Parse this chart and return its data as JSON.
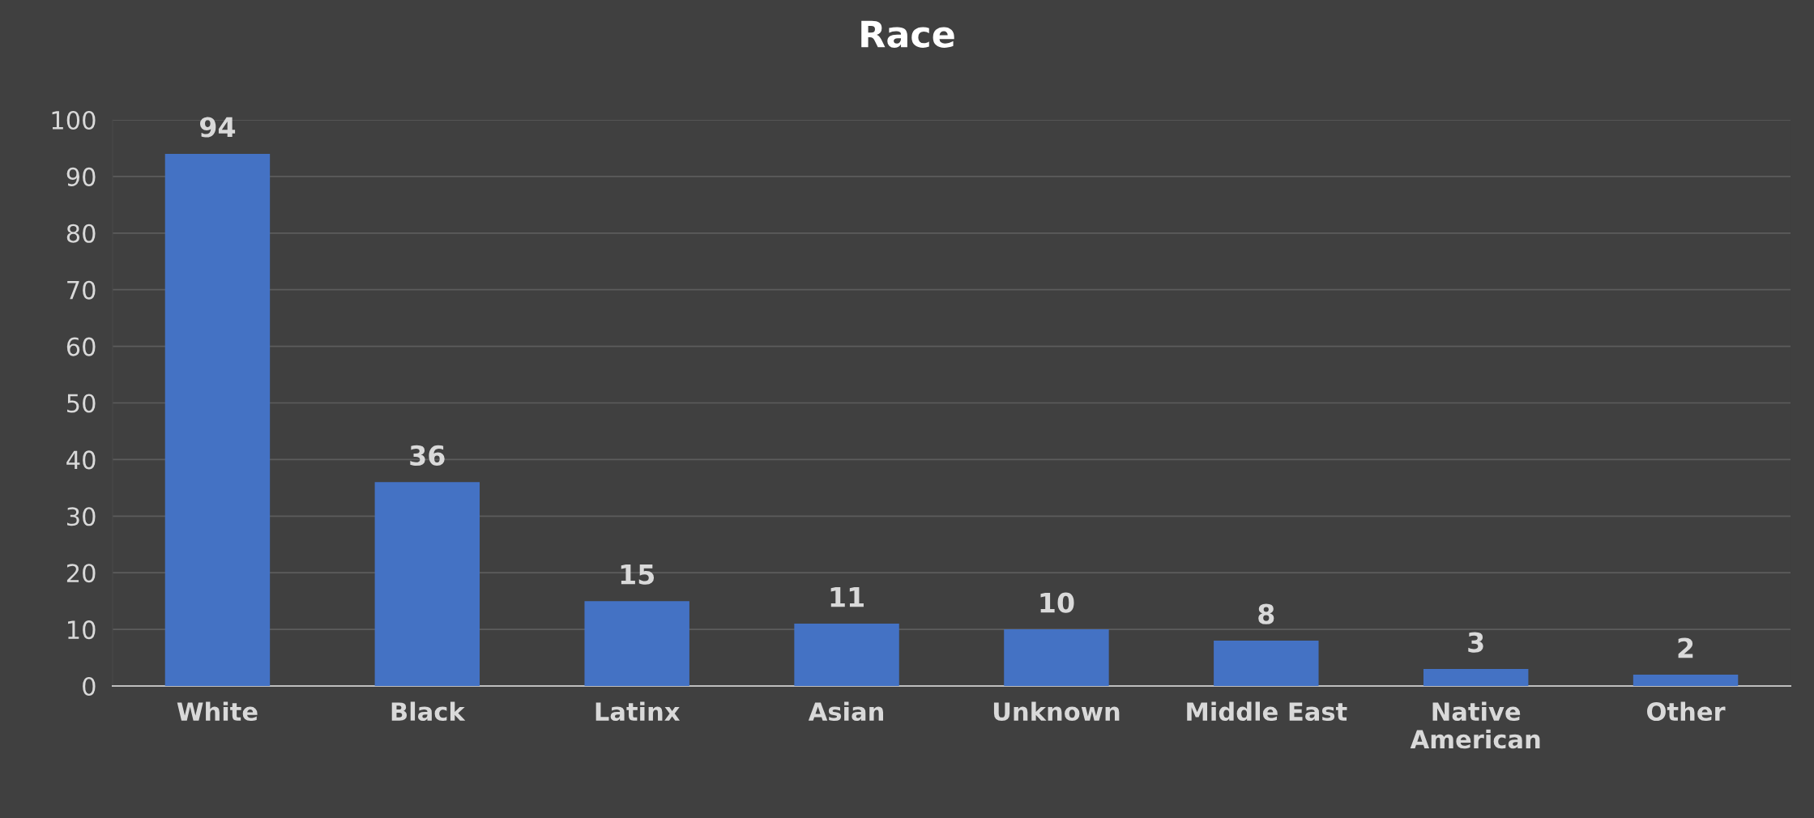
{
  "chart_data": {
    "type": "bar",
    "title": "Race",
    "categories": [
      "White",
      "Black",
      "Latinx",
      "Asian",
      "Unknown",
      "Middle East",
      "Native\nAmerican",
      "Other"
    ],
    "values": [
      94,
      36,
      15,
      11,
      10,
      8,
      3,
      2
    ],
    "color": "#4472c4",
    "ylim": [
      0,
      100
    ],
    "yticks": [
      0,
      10,
      20,
      30,
      40,
      50,
      60,
      70,
      80,
      90,
      100
    ],
    "grid": "y",
    "data_labels": true
  }
}
